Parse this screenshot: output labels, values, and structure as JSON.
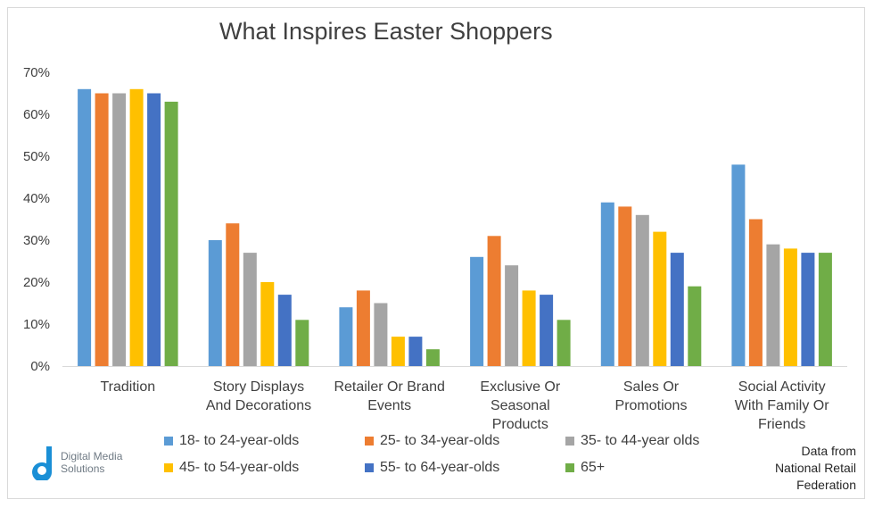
{
  "chart_data": {
    "type": "bar",
    "title": "What Inspires Easter Shoppers",
    "xlabel": "",
    "ylabel": "",
    "ylim": [
      0,
      70
    ],
    "y_ticks": [
      "0%",
      "10%",
      "20%",
      "30%",
      "40%",
      "50%",
      "60%",
      "70%"
    ],
    "grid": "none",
    "legend_position": "bottom",
    "categories": [
      [
        "Tradition"
      ],
      [
        "Story Displays",
        "And Decorations"
      ],
      [
        "Retailer Or Brand",
        "Events"
      ],
      [
        "Exclusive Or",
        "Seasonal",
        "Products"
      ],
      [
        "Sales Or",
        "Promotions"
      ],
      [
        "Social Activity",
        "With Family Or",
        "Friends"
      ]
    ],
    "series": [
      {
        "name": "18- to 24-year-olds",
        "color": "#5b9bd5",
        "values": [
          66,
          30,
          14,
          26,
          39,
          48
        ]
      },
      {
        "name": "25- to 34-year-olds",
        "color": "#ed7d31",
        "values": [
          65,
          34,
          18,
          31,
          38,
          35
        ]
      },
      {
        "name": "35- to 44-year olds",
        "color": "#a5a5a5",
        "values": [
          65,
          27,
          15,
          24,
          36,
          29
        ]
      },
      {
        "name": "45- to 54-year-olds",
        "color": "#ffc000",
        "values": [
          66,
          20,
          7,
          18,
          32,
          28
        ]
      },
      {
        "name": "55- to 64-year-olds",
        "color": "#4472c4",
        "values": [
          65,
          17,
          7,
          17,
          27,
          27
        ]
      },
      {
        "name": "65+",
        "color": "#70ad47",
        "values": [
          63,
          11,
          4,
          11,
          19,
          27
        ]
      }
    ]
  },
  "logo": {
    "line1": "Digital Media",
    "line2": "Solutions",
    "color": "#1a8fd6"
  },
  "source": {
    "line1": "Data from",
    "line2": "National Retail",
    "line3": "Federation"
  }
}
